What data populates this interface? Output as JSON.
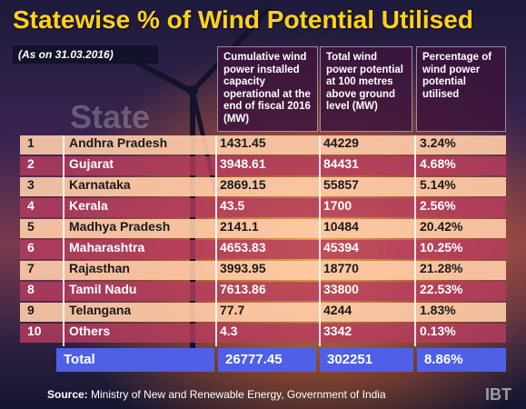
{
  "title": "Statewise % of Wind Potential Utilised",
  "date_label": "(As on 31.03.2016)",
  "watermark": "State",
  "headers": {
    "capacity": "Cumulative wind power installed capacity operational at the end of fiscal 2016 (MW)",
    "potential": "Total wind power potential at 100 metres above ground level (MW)",
    "percentage": "Percentage of wind power potential utilised"
  },
  "chart_data": {
    "type": "table",
    "columns": [
      "State",
      "Cumulative wind power installed capacity operational at the end of fiscal 2016 (MW)",
      "Total wind power potential at 100 metres above ground level (MW)",
      "Percentage of wind power potential utilised"
    ],
    "rows": [
      {
        "num": "1",
        "state": "Andhra Pradesh",
        "capacity": "1431.45",
        "potential": "44229",
        "percentage": "3.24%"
      },
      {
        "num": "2",
        "state": "Gujarat",
        "capacity": "3948.61",
        "potential": "84431",
        "percentage": "4.68%"
      },
      {
        "num": "3",
        "state": "Karnataka",
        "capacity": "2869.15",
        "potential": "55857",
        "percentage": "5.14%"
      },
      {
        "num": "4",
        "state": "Kerala",
        "capacity": "43.5",
        "potential": "1700",
        "percentage": "2.56%"
      },
      {
        "num": "5",
        "state": "Madhya Pradesh",
        "capacity": "2141.1",
        "potential": "10484",
        "percentage": "20.42%"
      },
      {
        "num": "6",
        "state": "Maharashtra",
        "capacity": "4653.83",
        "potential": "45394",
        "percentage": "10.25%"
      },
      {
        "num": "7",
        "state": "Rajasthan",
        "capacity": "3993.95",
        "potential": "18770",
        "percentage": "21.28%"
      },
      {
        "num": "8",
        "state": "Tamil Nadu",
        "capacity": "7613.86",
        "potential": "33800",
        "percentage": "22.53%"
      },
      {
        "num": "9",
        "state": "Telangana",
        "capacity": "77.7",
        "potential": "4244",
        "percentage": "1.83%"
      },
      {
        "num": "10",
        "state": "Others",
        "capacity": "4.3",
        "potential": "3342",
        "percentage": "0.13%"
      }
    ],
    "total": {
      "label": "Total",
      "capacity": "26777.45",
      "potential": "302251",
      "percentage": "8.86%"
    }
  },
  "source_label": "Source:",
  "source_text": " Ministry of New and Renewable Energy, Government of India",
  "logo": "IBT",
  "colors": {
    "title": "#ffd21a",
    "row_light": "#ffcdaa",
    "row_dark": "#b43c5f",
    "total": "#4f5fe6"
  }
}
